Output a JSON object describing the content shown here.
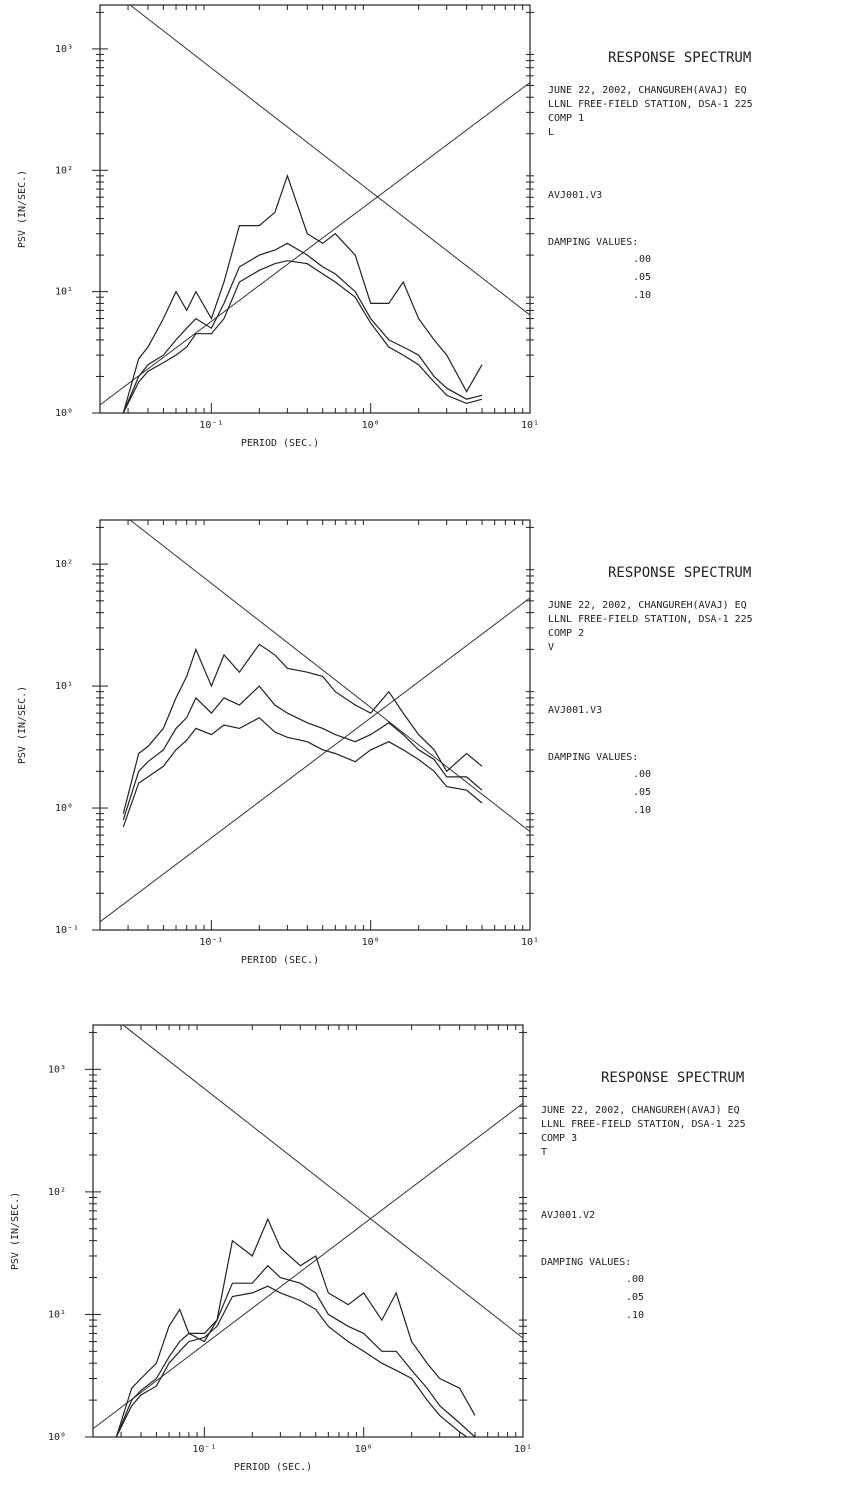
{
  "chart_data": [
    {
      "type": "line",
      "title": "RESPONSE SPECTRUM",
      "notes": [
        "JUNE 22, 2002, CHANGUREH(AVAJ) EQ",
        "LLNL FREE-FIELD STATION, DSA-1 225",
        "COMP 1",
        "L"
      ],
      "file": "AVJ001.V3",
      "legend_title": "DAMPING VALUES:",
      "x_label": "PERIOD (SEC.)",
      "y_label": "PSV (IN/SEC.)",
      "log_x": true,
      "log_y": true,
      "grid": false,
      "xlim": [
        0.02,
        10
      ],
      "ylim": [
        1,
        2300
      ],
      "xticks": [
        {
          "value": 0.1,
          "label": "10⁻¹"
        },
        {
          "value": 1,
          "label": "10⁰"
        },
        {
          "value": 10,
          "label": "10¹"
        }
      ],
      "yticks": [
        {
          "value": 1,
          "label": "10⁰"
        },
        {
          "value": 10,
          "label": "10¹"
        },
        {
          "value": 100,
          "label": "10²"
        },
        {
          "value": 1000,
          "label": "10³"
        }
      ],
      "x": [
        0.028,
        0.035,
        0.04,
        0.05,
        0.06,
        0.07,
        0.08,
        0.1,
        0.12,
        0.15,
        0.2,
        0.25,
        0.3,
        0.4,
        0.5,
        0.6,
        0.8,
        1.0,
        1.3,
        1.6,
        2,
        2.5,
        3,
        4,
        5
      ],
      "series": [
        {
          "name": ".00",
          "color": "#222222",
          "values": [
            1,
            2.8,
            3.5,
            6,
            10,
            7,
            10,
            6,
            12,
            35,
            35,
            45,
            90,
            30,
            25,
            30,
            20,
            8,
            8,
            12,
            6,
            4,
            3,
            1.5,
            2.5
          ]
        },
        {
          "name": ".05",
          "color": "#222222",
          "values": [
            1,
            2,
            2.5,
            3,
            4,
            5,
            6,
            5,
            8,
            16,
            20,
            22,
            25,
            20,
            16,
            14,
            10,
            6,
            4,
            3.5,
            3,
            2,
            1.6,
            1.3,
            1.4
          ]
        },
        {
          "name": ".10",
          "color": "#222222",
          "values": [
            1,
            1.8,
            2.2,
            2.6,
            3,
            3.5,
            4.5,
            4.5,
            6,
            12,
            15,
            17,
            18,
            17,
            14,
            12,
            9,
            5.5,
            3.5,
            3,
            2.5,
            1.8,
            1.4,
            1.2,
            1.3
          ]
        }
      ]
    },
    {
      "type": "line",
      "title": "RESPONSE SPECTRUM",
      "notes": [
        "JUNE 22, 2002, CHANGUREH(AVAJ) EQ",
        "LLNL FREE-FIELD STATION, DSA-1 225",
        "COMP 2",
        "V"
      ],
      "file": "AVJ001.V3",
      "legend_title": "DAMPING VALUES:",
      "x_label": "PERIOD (SEC.)",
      "y_label": "PSV (IN/SEC.)",
      "log_x": true,
      "log_y": true,
      "grid": false,
      "xlim": [
        0.02,
        10
      ],
      "ylim": [
        0.1,
        230
      ],
      "xticks": [
        {
          "value": 0.1,
          "label": "10⁻¹"
        },
        {
          "value": 1,
          "label": "10⁰"
        },
        {
          "value": 10,
          "label": "10¹"
        }
      ],
      "yticks": [
        {
          "value": 0.1,
          "label": "10⁻¹"
        },
        {
          "value": 1,
          "label": "10⁰"
        },
        {
          "value": 10,
          "label": "10¹"
        },
        {
          "value": 100,
          "label": "10²"
        }
      ],
      "x": [
        0.028,
        0.035,
        0.04,
        0.05,
        0.06,
        0.07,
        0.08,
        0.1,
        0.12,
        0.15,
        0.2,
        0.25,
        0.3,
        0.4,
        0.5,
        0.6,
        0.8,
        1.0,
        1.3,
        1.6,
        2,
        2.5,
        3,
        4,
        5
      ],
      "series": [
        {
          "name": ".00",
          "color": "#222222",
          "values": [
            0.9,
            2.8,
            3.2,
            4.5,
            8,
            12,
            20,
            10,
            18,
            13,
            22,
            18,
            14,
            13,
            12,
            9,
            7,
            6,
            9,
            6,
            4,
            3,
            2,
            2.8,
            2.2
          ]
        },
        {
          "name": ".05",
          "color": "#222222",
          "values": [
            0.8,
            2,
            2.4,
            3,
            4.5,
            5.5,
            8,
            6,
            8,
            7,
            10,
            7,
            6,
            5,
            4.5,
            4,
            3.5,
            4,
            5,
            4,
            3,
            2.5,
            1.8,
            1.8,
            1.4
          ]
        },
        {
          "name": ".10",
          "color": "#222222",
          "values": [
            0.7,
            1.6,
            1.8,
            2.2,
            3,
            3.6,
            4.5,
            4,
            4.8,
            4.5,
            5.5,
            4.2,
            3.8,
            3.5,
            3,
            2.8,
            2.4,
            3,
            3.5,
            3,
            2.5,
            2,
            1.5,
            1.4,
            1.1
          ]
        }
      ]
    },
    {
      "type": "line",
      "title": "RESPONSE SPECTRUM",
      "notes": [
        "JUNE 22, 2002, CHANGUREH(AVAJ) EQ",
        "LLNL FREE-FIELD STATION, DSA-1 225",
        "COMP 3",
        "T"
      ],
      "file": "AVJ001.V2",
      "legend_title": "DAMPING VALUES:",
      "x_label": "PERIOD (SEC.)",
      "y_label": "PSV (IN/SEC.)",
      "log_x": true,
      "log_y": true,
      "grid": false,
      "xlim": [
        0.02,
        10
      ],
      "ylim": [
        1,
        2300
      ],
      "xticks": [
        {
          "value": 0.1,
          "label": "10⁻¹"
        },
        {
          "value": 1,
          "label": "10⁰"
        },
        {
          "value": 10,
          "label": "10¹"
        }
      ],
      "yticks": [
        {
          "value": 1,
          "label": "10⁰"
        },
        {
          "value": 10,
          "label": "10¹"
        },
        {
          "value": 100,
          "label": "10²"
        },
        {
          "value": 1000,
          "label": "10³"
        }
      ],
      "x": [
        0.028,
        0.035,
        0.04,
        0.05,
        0.06,
        0.07,
        0.08,
        0.1,
        0.12,
        0.15,
        0.2,
        0.25,
        0.3,
        0.4,
        0.5,
        0.6,
        0.8,
        1.0,
        1.3,
        1.6,
        2,
        2.5,
        3,
        4,
        5
      ],
      "series": [
        {
          "name": ".00",
          "color": "#222222",
          "values": [
            1,
            2.5,
            3,
            4,
            8,
            11,
            7,
            6,
            9,
            40,
            30,
            60,
            35,
            25,
            30,
            15,
            12,
            15,
            9,
            15,
            6,
            4,
            3,
            2.5,
            1.5
          ]
        },
        {
          "name": ".05",
          "color": "#222222",
          "values": [
            1,
            2,
            2.4,
            3,
            4.5,
            6,
            7,
            7,
            9,
            18,
            18,
            25,
            20,
            18,
            15,
            10,
            8,
            7,
            5,
            5,
            3.5,
            2.5,
            1.8,
            1.3,
            1
          ]
        },
        {
          "name": ".10",
          "color": "#222222",
          "values": [
            1,
            1.8,
            2.2,
            2.6,
            4,
            5,
            6,
            6.5,
            8,
            14,
            15,
            17,
            15,
            13,
            11,
            8,
            6,
            5,
            4,
            3.5,
            3,
            2,
            1.5,
            1.1,
            0.9
          ]
        }
      ]
    }
  ]
}
